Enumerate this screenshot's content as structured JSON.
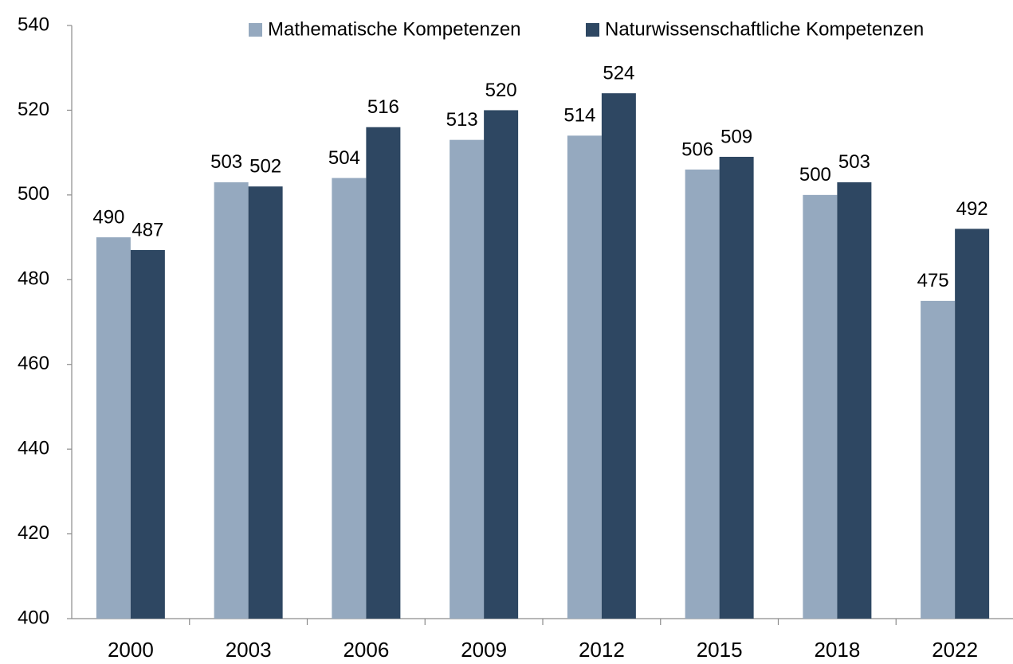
{
  "chart_data": {
    "type": "bar",
    "categories": [
      "2000",
      "2003",
      "2006",
      "2009",
      "2012",
      "2015",
      "2018",
      "2022"
    ],
    "series": [
      {
        "name": "Mathematische Kompetenzen",
        "color": "#95a9bf",
        "values": [
          490,
          503,
          504,
          513,
          514,
          506,
          500,
          475
        ]
      },
      {
        "name": "Naturwissenschaftliche Kompetenzen",
        "color": "#2e4762",
        "values": [
          487,
          502,
          516,
          520,
          524,
          509,
          503,
          492
        ]
      }
    ],
    "ylim": [
      400,
      540
    ],
    "yticks": [
      400,
      420,
      440,
      460,
      480,
      500,
      520,
      540
    ],
    "legend": "top",
    "grid": false
  }
}
